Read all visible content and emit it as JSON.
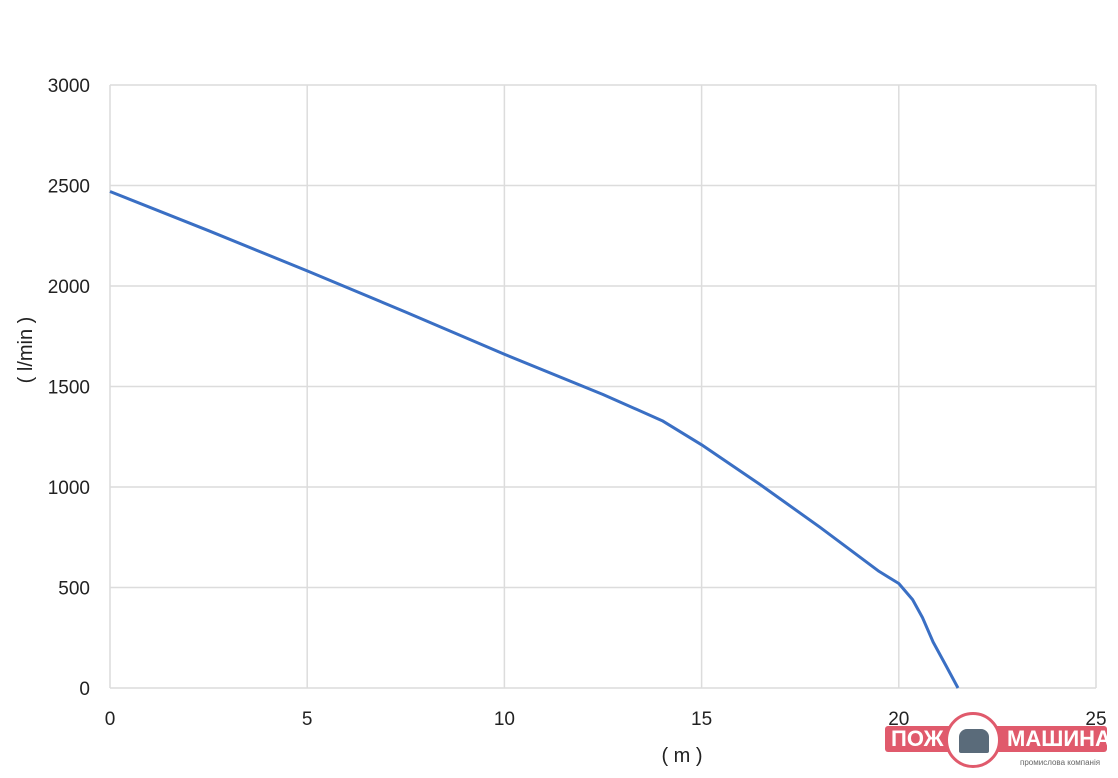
{
  "chart_data": {
    "type": "line",
    "xlabel": "( m )",
    "ylabel": "( l/min )",
    "xlim": [
      0,
      25
    ],
    "ylim": [
      0,
      3000
    ],
    "xticks": [
      0,
      5,
      10,
      15,
      20,
      25
    ],
    "yticks": [
      0,
      500,
      1000,
      1500,
      2000,
      2500,
      3000
    ],
    "grid": true,
    "line_color": "#3a6fc4",
    "series": [
      {
        "x": [
          0,
          2.5,
          5,
          7.5,
          10,
          12.5,
          14,
          15,
          16.5,
          18,
          19.5,
          20,
          20.35,
          20.6,
          20.87,
          21.2,
          21.5
        ],
        "y": [
          2470,
          2275,
          2075,
          1870,
          1660,
          1460,
          1330,
          1210,
          1010,
          800,
          580,
          520,
          440,
          350,
          229,
          110,
          0
        ]
      }
    ]
  },
  "logo": {
    "left": "ПОЖ",
    "right": "МАШИНА",
    "subtitle": "промислова компанія",
    "color": "#e05a6c"
  }
}
